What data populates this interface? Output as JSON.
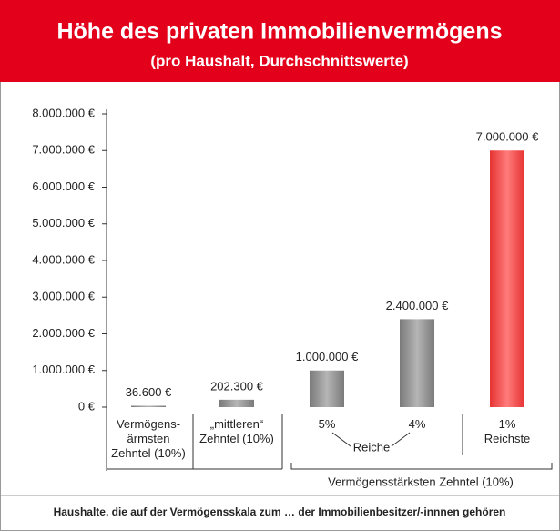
{
  "chart_data": {
    "type": "bar",
    "title": "Höhe des privaten Immobilienvermögens",
    "subtitle": "(pro Haushalt, Durchschnittswerte)",
    "categories": [
      "Vermögens-\närmsten\nZehntel (10%)",
      "„mittleren“\nZehntel (10%)",
      "5%",
      "4%",
      "1%\nReichste"
    ],
    "values": [
      36600,
      202300,
      1000000,
      2400000,
      7000000
    ],
    "value_labels": [
      "36.600 €",
      "202.300 €",
      "1.000.000 €",
      "2.400.000 €",
      "7.000.000 €"
    ],
    "colors": [
      "gray",
      "gray",
      "gray",
      "gray",
      "red"
    ],
    "ylim": [
      0,
      8000000
    ],
    "yticks": [
      {
        "value": 0,
        "label": "0  €"
      },
      {
        "value": 1000000,
        "label": "1.000.000 €"
      },
      {
        "value": 2000000,
        "label": "2.000.000 €"
      },
      {
        "value": 3000000,
        "label": "3.000.000 €"
      },
      {
        "value": 4000000,
        "label": "4.000.000 €"
      },
      {
        "value": 5000000,
        "label": "5.000.000 €"
      },
      {
        "value": 6000000,
        "label": "6.000.000 €"
      },
      {
        "value": 7000000,
        "label": "7.000.000 €"
      },
      {
        "value": 8000000,
        "label": "8.000.000 €"
      }
    ],
    "annotations": [
      "Reiche",
      "Vermögensstärksten Zehntel (10%)"
    ],
    "note": "Haushalte, die auf der Vermögensskala zum … der Immobilienbesitzer/-innnen gehören"
  }
}
